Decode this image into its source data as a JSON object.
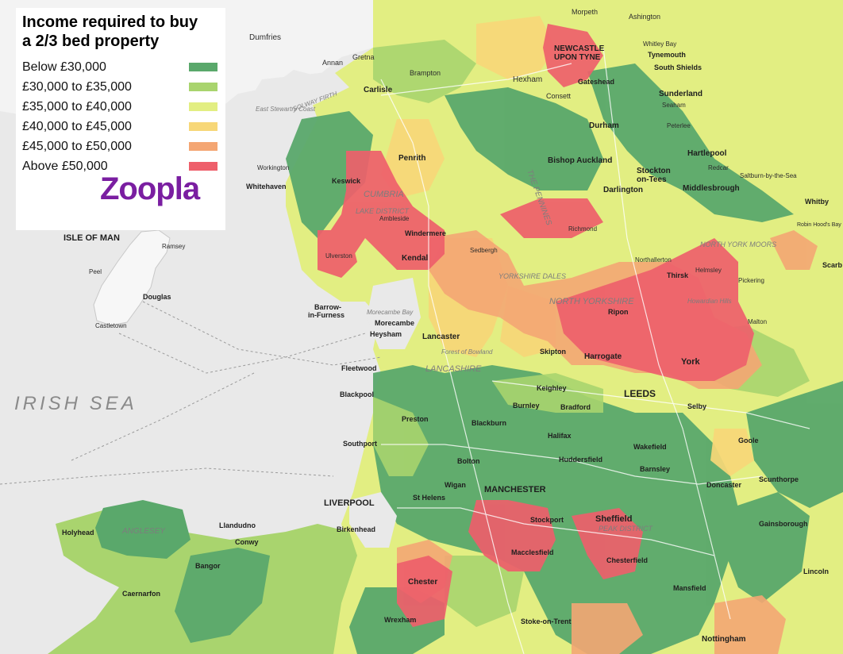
{
  "legend": {
    "title_line1": "Income required to buy",
    "title_line2": "a 2/3 bed property",
    "items": [
      {
        "label": "Below £30,000",
        "color": "#5aa86b"
      },
      {
        "label": "£30,000 to £35,000",
        "color": "#a9d46e"
      },
      {
        "label": "£35,000 to £40,000",
        "color": "#e2ee82"
      },
      {
        "label": "£40,000 to £45,000",
        "color": "#f7d778"
      },
      {
        "label": "£45,000 to £50,000",
        "color": "#f4a673"
      },
      {
        "label": "Above £50,000",
        "color": "#ee5f6b"
      }
    ],
    "brand": "Zoopla"
  },
  "colors": {
    "sea": "#e9e9e9",
    "land_outside": "#f1f1f1",
    "road": "#ffffff",
    "water": "#d6dbe0"
  },
  "labels": {
    "dumfries": "Dumfries",
    "annan": "Annan",
    "gretna": "Gretna",
    "carlisle": "Carlisle",
    "brampton": "Brampton",
    "hexham": "Hexham",
    "newcastle1": "NEWCASTLE",
    "newcastle2": "UPON TYNE",
    "morpeth": "Morpeth",
    "ashington": "Ashington",
    "whitley_bay": "Whitley Bay",
    "tynemouth": "Tynemouth",
    "south_shields": "South Shields",
    "gateshead": "Gateshead",
    "sunderland": "Sunderland",
    "consett": "Consett",
    "durham": "Durham",
    "seaham": "Seaham",
    "peterlee": "Peterlee",
    "hartlepool": "Hartlepool",
    "bishop_auckland": "Bishop Auckland",
    "stockton": "Stockton",
    "stockton2": "on-Tees",
    "middlesbrough": "Middlesbrough",
    "redcar": "Redcar",
    "saltburn": "Saltburn-by-the-Sea",
    "whitby": "Whitby",
    "darlington": "Darlington",
    "penrith": "Penrith",
    "workington": "Workington",
    "whitehaven": "Whitehaven",
    "keswick": "Keswick",
    "cumbria": "CUMBRIA",
    "lake_district": "LAKE DISTRICT",
    "ambleside": "Ambleside",
    "windermere": "Windermere",
    "kendal": "Kendal",
    "sedbergh": "Sedbergh",
    "barrow1": "Barrow-",
    "barrow2": "in-Furness",
    "ulverston": "Ulverston",
    "morecambe": "Morecambe",
    "heysham": "Heysham",
    "lancaster": "Lancaster",
    "lancashire": "LANCASHIRE",
    "fleetwood": "Fleetwood",
    "blackpool": "Blackpool",
    "preston": "Preston",
    "southport": "Southport",
    "the_pennines": "THE PENNINES",
    "yorkshire_dales": "YORKSHIRE DALES",
    "north_yorkshire": "NORTH YORKSHIRE",
    "north_york_moors": "NORTH YORK MOORS",
    "richmond": "Richmond",
    "thirsk": "Thirsk",
    "ripon": "Ripon",
    "harrogate": "Harrogate",
    "york": "York",
    "skipton": "Skipton",
    "leeds": "LEEDS",
    "bradford": "Bradford",
    "keighley": "Keighley",
    "burnley": "Burnley",
    "blackburn": "Blackburn",
    "halifax": "Halifax",
    "huddersfield": "Huddersfield",
    "wakefield": "Wakefield",
    "barnsley": "Barnsley",
    "doncaster": "Doncaster",
    "scunthorpe": "Scunthorpe",
    "goole": "Goole",
    "selby": "Selby",
    "manchester": "MANCHESTER",
    "bolton": "Bolton",
    "wigan": "Wigan",
    "st_helens": "St Helens",
    "liverpool": "LIVERPOOL",
    "birkenhead": "Birkenhead",
    "chester": "Chester",
    "stockport": "Stockport",
    "macclesfield": "Macclesfield",
    "peak_district": "PEAK DISTRICT",
    "sheffield": "Sheffield",
    "chesterfield": "Chesterfield",
    "mansfield": "Mansfield",
    "nottingham": "Nottingham",
    "stoke": "Stoke-on-Trent",
    "lincoln": "Lincoln",
    "gainsborough": "Gainsborough",
    "wrexham": "Wrexham",
    "holyhead": "Holyhead",
    "anglesey": "ANGLESEY",
    "llandudno": "Llandudno",
    "bangor": "Bangor",
    "caernarfon": "Caernarfon",
    "conwy": "Conwy",
    "isle_of_man": "ISLE OF MAN",
    "douglas": "Douglas",
    "ramsey": "Ramsey",
    "peel": "Peel",
    "castletown": "Castletown",
    "irish_sea": "IRISH SEA",
    "solway_firth": "SOLWAY FIRTH",
    "morecambe_bay": "Morecambe Bay",
    "forest_of_bowland": "Forest of Bowland",
    "howardian_hills": "Howardian Hills",
    "scarborough": "Scarb",
    "robin_hoods_bay": "Robin Hood's Bay",
    "pickering": "Pickering",
    "malton": "Malton",
    "northallerton": "Northallerton",
    "helmsley": "Helmsley",
    "east_stewartry": "East Stewartry Coast"
  }
}
